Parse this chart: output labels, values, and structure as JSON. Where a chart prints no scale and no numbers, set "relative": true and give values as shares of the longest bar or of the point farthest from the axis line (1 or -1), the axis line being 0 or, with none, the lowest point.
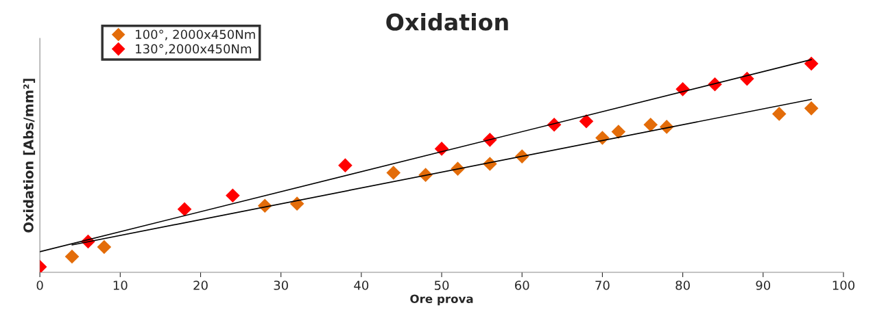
{
  "chart_data": {
    "type": "scatter",
    "title": "Oxidation",
    "xlabel": "Ore prova",
    "ylabel": "Oxidation [Abs/mm²]",
    "relative": true,
    "legend": "top left",
    "grid": false,
    "xlim": [
      0,
      100
    ],
    "xticks": [
      0,
      10,
      20,
      30,
      40,
      50,
      60,
      70,
      80,
      90,
      100
    ],
    "series": [
      {
        "name": "100°, 2000x450Nm",
        "color": "#e36c09",
        "marker": "diamond",
        "x": [
          4,
          8,
          28,
          32,
          44,
          48,
          52,
          56,
          60,
          70,
          72,
          76,
          78,
          92,
          96
        ],
        "values": [
          0.074,
          0.119,
          0.313,
          0.323,
          0.468,
          0.458,
          0.487,
          0.51,
          0.545,
          0.632,
          0.661,
          0.694,
          0.684,
          0.745,
          0.771
        ]
      },
      {
        "name": "130°,2000x450Nm",
        "color": "#ff0000",
        "marker": "diamond",
        "x": [
          0,
          6,
          18,
          24,
          38,
          50,
          56,
          64,
          68,
          80,
          84,
          88,
          96
        ],
        "values": [
          0.026,
          0.145,
          0.297,
          0.361,
          0.503,
          0.581,
          0.623,
          0.694,
          0.71,
          0.861,
          0.884,
          0.91,
          0.981
        ]
      },
      {
        "type": "line",
        "marker": "none",
        "color": "#000000",
        "x": [
          4,
          96
        ],
        "values": [
          0.129,
          0.813
        ]
      },
      {
        "type": "line",
        "marker": "none",
        "color": "#000000",
        "x": [
          0,
          96
        ],
        "values": [
          0.097,
          1
        ]
      }
    ]
  }
}
